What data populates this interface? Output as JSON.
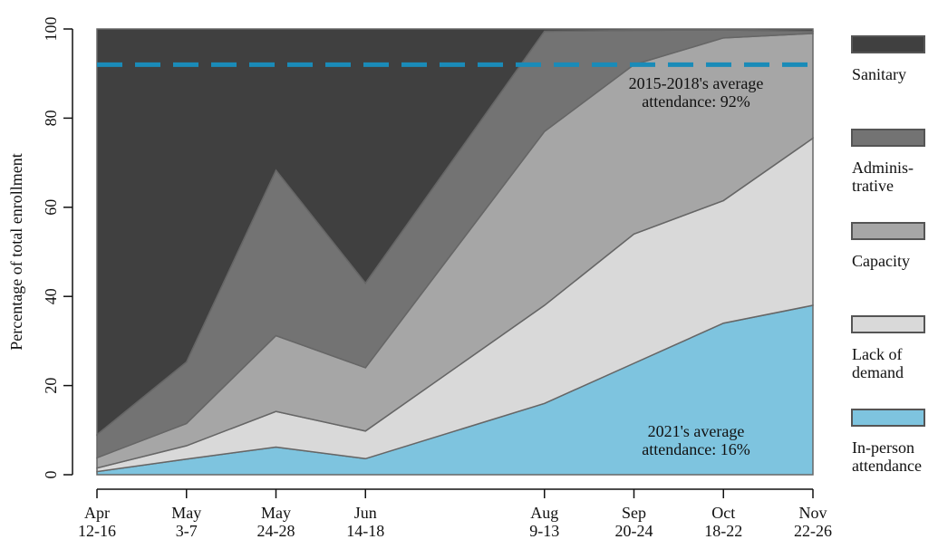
{
  "chart_data": {
    "type": "stacked_area",
    "y_label": "Percentage of total enrollment",
    "categories": [
      "Apr\n12-16",
      "May\n3-7",
      "May\n24-28",
      "Jun\n14-18",
      null,
      "Aug\n9-13",
      "Sep\n20-24",
      "Oct\n18-22",
      "Nov\n22-26"
    ],
    "series": [
      {
        "name": "In-person\nattendance",
        "color": "#7ec4df",
        "values": [
          0.7,
          3.5,
          6.2,
          3.6,
          null,
          16,
          25,
          34,
          38
        ]
      },
      {
        "name": "Lack of\ndemand",
        "color": "#d9d9d9",
        "values": [
          0.8,
          3,
          8,
          6.2,
          null,
          22,
          29,
          27.5,
          37.5
        ]
      },
      {
        "name": "Capacity",
        "color": "#a6a6a6",
        "values": [
          2.3,
          5,
          17,
          14.2,
          null,
          39,
          38,
          36.5,
          23.5
        ]
      },
      {
        "name": "Adminis-\ntrative",
        "color": "#737373",
        "values": [
          5.2,
          13.8,
          37.1,
          19,
          null,
          22.5,
          7.7,
          1.8,
          0.5
        ]
      },
      {
        "name": "Sanitary",
        "color": "#404040",
        "values": [
          91,
          74.7,
          31.7,
          57,
          null,
          0.5,
          0.3,
          0.2,
          0.5
        ]
      }
    ],
    "reference_line": {
      "value": 92,
      "color": "#1a8bb8",
      "label": "2015-2018's average\nattendance: 92%"
    },
    "annotation": "2021's average\nattendance: 16%",
    "ylim": [
      0,
      100
    ],
    "yticks": [
      0,
      20,
      40,
      60,
      80,
      100
    ]
  }
}
